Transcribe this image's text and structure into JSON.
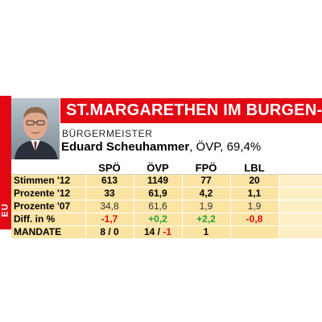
{
  "header": {
    "title": "ST.MARGARETHEN IM BURGEN-",
    "role": "BÜRGERMEISTER",
    "mayor_name": "Eduard Scheuhammer",
    "mayor_detail": ", ÖVP, 69,4%",
    "side_label": "EU"
  },
  "table": {
    "columns": [
      "SPÖ",
      "ÖVP",
      "FPÖ",
      "LBL"
    ],
    "rows": [
      {
        "label": "Stimmen '12",
        "style": "bold",
        "values": [
          "613",
          "1149",
          "77",
          "20"
        ],
        "colors": [
          "",
          "",
          "",
          ""
        ]
      },
      {
        "label": "Prozente '12",
        "style": "bold",
        "values": [
          "33",
          "61,9",
          "4,2",
          "1,1"
        ],
        "colors": [
          "",
          "",
          "",
          ""
        ]
      },
      {
        "label": "Prozente '07",
        "style": "light",
        "values": [
          "34,8",
          "61,6",
          "1,9",
          "1,9"
        ],
        "colors": [
          "",
          "",
          "",
          ""
        ]
      },
      {
        "label": "Diff. in %",
        "style": "bold",
        "values": [
          "-1,7",
          "+0,2",
          "+2,2",
          "-0,8"
        ],
        "colors": [
          "#e30613",
          "#22a33a",
          "#22a33a",
          "#e30613"
        ]
      }
    ],
    "mandate": {
      "label": "MANDATE",
      "spo": "8 / 0",
      "ovp_main": "14 / ",
      "ovp_change": "-1",
      "fpo": "1",
      "lbl": ""
    }
  },
  "colors": {
    "accent_red": "#e30613",
    "table_yellow": "#fbe3a3",
    "positive_green": "#22a33a"
  },
  "icons": {
    "photo": "mayor-portrait"
  }
}
